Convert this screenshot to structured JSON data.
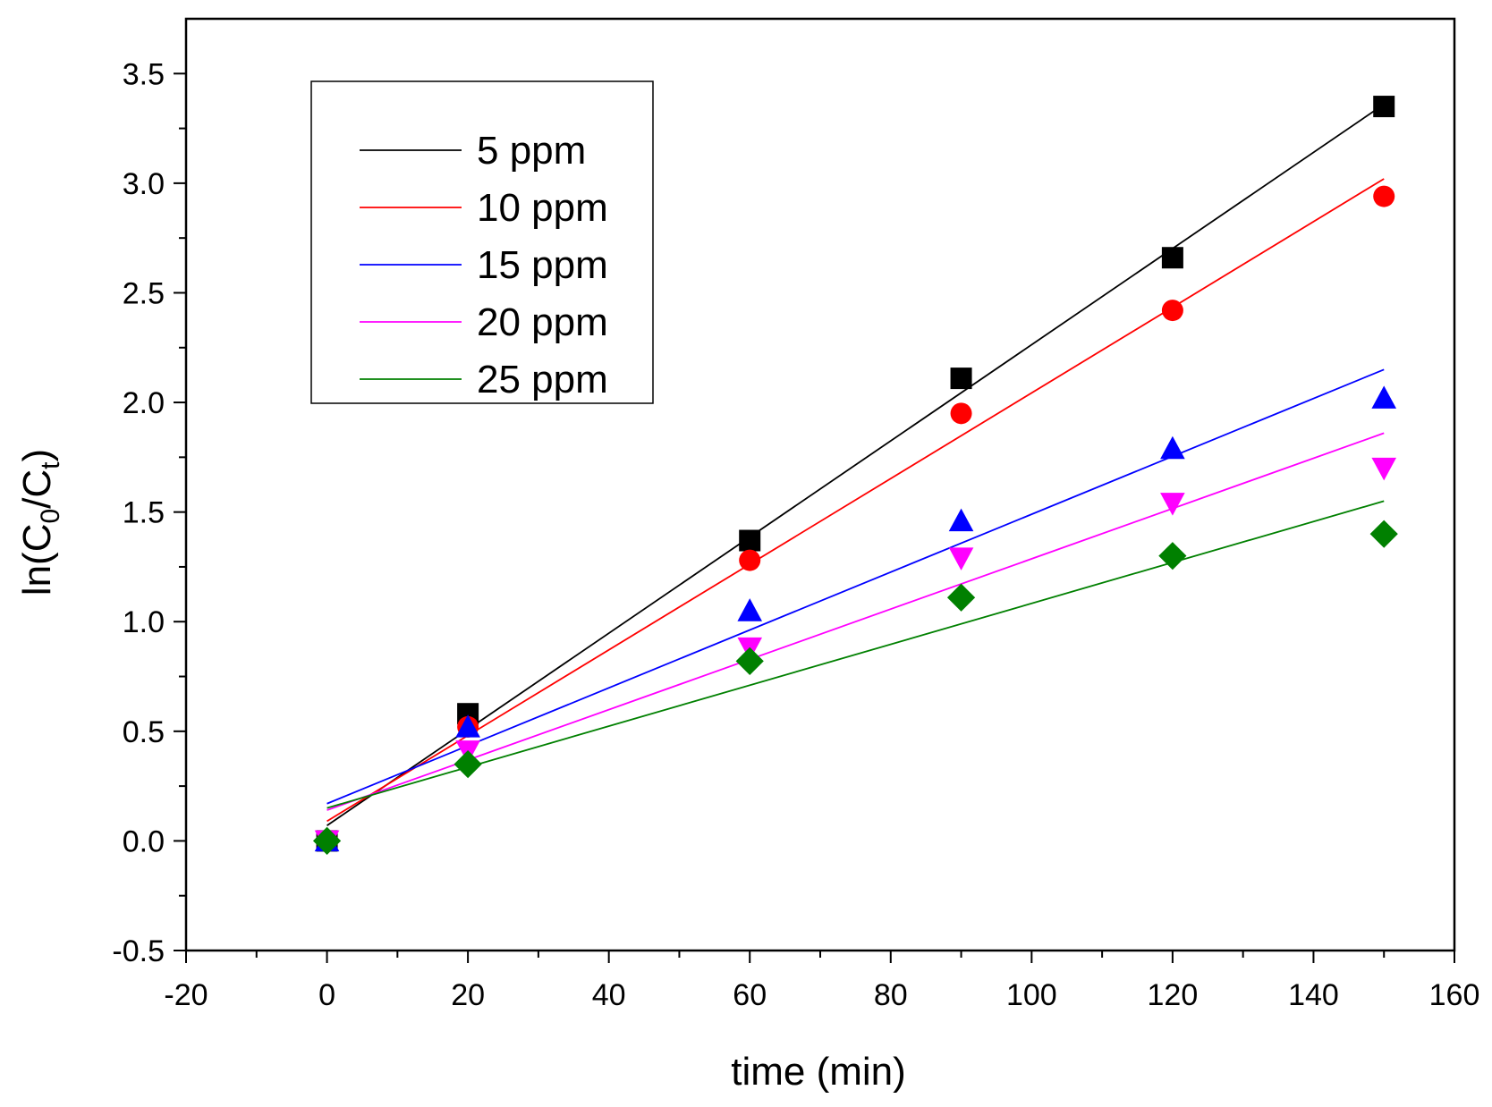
{
  "chart_data": {
    "type": "scatter",
    "title": "",
    "xlabel": "time (min)",
    "ylabel": {
      "base": "ln(C",
      "sub1": "0",
      "mid": "/C",
      "sub2": "t",
      "end": ")"
    },
    "xlim": [
      -20,
      160
    ],
    "ylim": [
      -0.5,
      3.75
    ],
    "xticks": [
      -20,
      0,
      20,
      40,
      60,
      80,
      100,
      120,
      140,
      160
    ],
    "xtick_labels": [
      "-20",
      "0",
      "20",
      "40",
      "60",
      "80",
      "100",
      "120",
      "140",
      "160"
    ],
    "yticks": [
      -0.5,
      0.0,
      0.5,
      1.0,
      1.5,
      2.0,
      2.5,
      3.0,
      3.5
    ],
    "ytick_labels": [
      "-0.5",
      "0.0",
      "0.5",
      "1.0",
      "1.5",
      "2.0",
      "2.5",
      "3.0",
      "3.5"
    ],
    "grid": false,
    "legend_position": "top-left",
    "series": [
      {
        "name": "5 ppm",
        "color": "#000000",
        "marker": "square",
        "x": [
          0,
          20,
          60,
          90,
          120,
          150
        ],
        "y": [
          0.0,
          0.58,
          1.37,
          2.11,
          2.66,
          3.35
        ],
        "fit": {
          "x": [
            0,
            150
          ],
          "y": [
            0.07,
            3.36
          ]
        }
      },
      {
        "name": "10 ppm",
        "color": "#ff0000",
        "marker": "circle",
        "x": [
          0,
          20,
          60,
          90,
          120,
          150
        ],
        "y": [
          0.0,
          0.52,
          1.28,
          1.95,
          2.42,
          2.94
        ],
        "fit": {
          "x": [
            0,
            150
          ],
          "y": [
            0.09,
            3.02
          ]
        }
      },
      {
        "name": "15 ppm",
        "color": "#0000ff",
        "marker": "triangle-up",
        "x": [
          0,
          20,
          60,
          90,
          120,
          150
        ],
        "y": [
          0.0,
          0.52,
          1.05,
          1.46,
          1.79,
          2.02
        ],
        "fit": {
          "x": [
            0,
            150
          ],
          "y": [
            0.17,
            2.15
          ]
        }
      },
      {
        "name": "20 ppm",
        "color": "#ff00ff",
        "marker": "triangle-down",
        "x": [
          0,
          20,
          60,
          90,
          120,
          150
        ],
        "y": [
          0.0,
          0.41,
          0.88,
          1.29,
          1.54,
          1.7
        ],
        "fit": {
          "x": [
            0,
            150
          ],
          "y": [
            0.14,
            1.86
          ]
        }
      },
      {
        "name": "25 ppm",
        "color": "#008000",
        "marker": "diamond",
        "x": [
          0,
          20,
          60,
          90,
          120,
          150
        ],
        "y": [
          0.0,
          0.35,
          0.82,
          1.11,
          1.3,
          1.4
        ],
        "fit": {
          "x": [
            0,
            150
          ],
          "y": [
            0.15,
            1.55
          ]
        }
      }
    ]
  }
}
